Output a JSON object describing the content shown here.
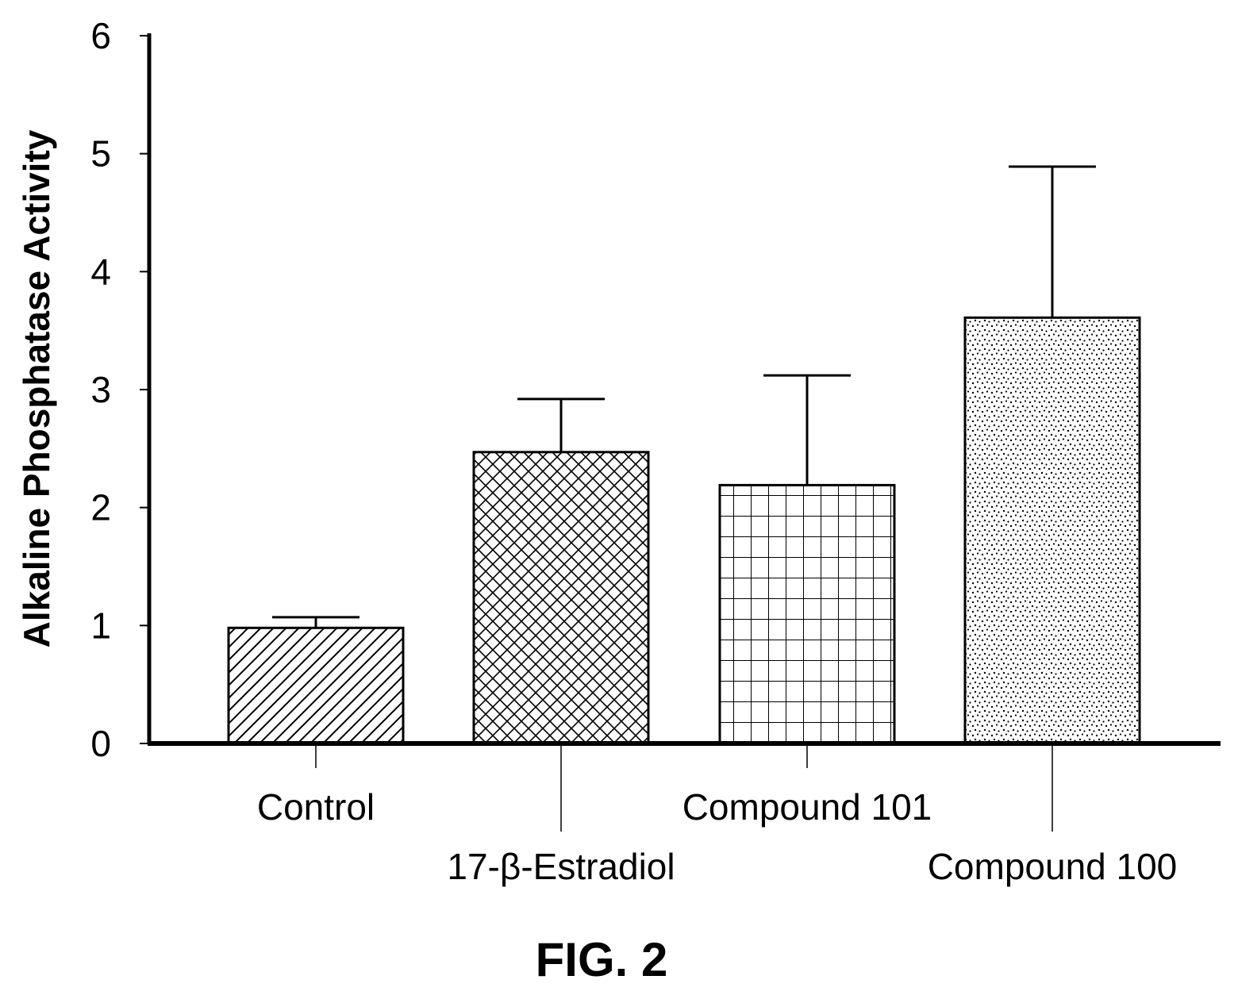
{
  "figure": {
    "caption": "FIG. 2"
  },
  "chart_data": {
    "type": "bar",
    "title": "",
    "xlabel": "",
    "ylabel": "Alkaline Phosphatase Activity",
    "ylim": [
      0,
      6
    ],
    "yticks": [
      0,
      1,
      2,
      3,
      4,
      5,
      6
    ],
    "grid": false,
    "legend": "none",
    "categories": [
      "Control",
      "17-β-Estradiol",
      "Compound 101",
      "Compound 100"
    ],
    "values": [
      0.98,
      2.47,
      2.19,
      3.61
    ],
    "error_upper": [
      1.07,
      2.92,
      3.12,
      4.89
    ],
    "patterns": [
      "diagonal-hatch",
      "cross-hatch",
      "grid",
      "stipple"
    ],
    "label_rows": [
      "upper",
      "lower",
      "upper",
      "lower"
    ]
  }
}
